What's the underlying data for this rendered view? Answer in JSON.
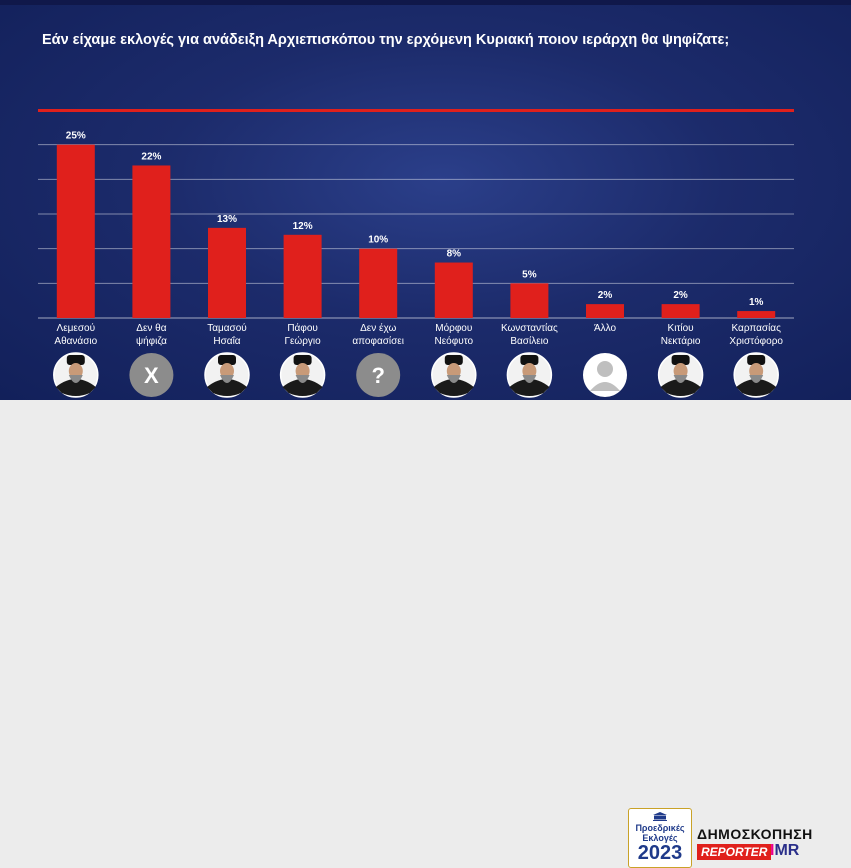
{
  "title": "Εάν είχαμε εκλογές για ανάδειξη Αρχιεπισκόπου την ερχόμενη Κυριακή ποιον ιεράρχη θα ψηφίζατε;",
  "colors": {
    "bar": "#e0201c",
    "background": "#1c2b6b",
    "accent": "#e0201c"
  },
  "chart_data": {
    "type": "bar",
    "title": "Εάν είχαμε εκλογές για ανάδειξη Αρχιεπισκόπου την ερχόμενη Κυριακή ποιον ιεράρχη θα ψηφίζατε;",
    "categories": [
      [
        "Λεμεσού",
        "Αθανάσιο"
      ],
      [
        "Δεν θα",
        "ψήφιζα"
      ],
      [
        "Ταμασού",
        "Ησαΐα"
      ],
      [
        "Πάφου",
        "Γεώργιο"
      ],
      [
        "Δεν έχω",
        "αποφασίσει"
      ],
      [
        "Μόρφου",
        "Νεόφυτο"
      ],
      [
        "Κωνσταντίας",
        "Βασίλειο"
      ],
      [
        "Άλλο"
      ],
      [
        "Κιτίου",
        "Νεκτάριο"
      ],
      [
        "Καρπασίας",
        "Χριστόφορο"
      ]
    ],
    "values": [
      25,
      22,
      13,
      12,
      10,
      8,
      5,
      2,
      2,
      1
    ],
    "value_labels": [
      "25%",
      "22%",
      "13%",
      "12%",
      "10%",
      "8%",
      "5%",
      "2%",
      "2%",
      "1%"
    ],
    "ylim": [
      0,
      30
    ],
    "grid": true,
    "icons": [
      "portrait",
      "x-mark-icon",
      "portrait",
      "portrait",
      "question-mark-icon",
      "portrait",
      "portrait",
      "person-silhouette-icon",
      "portrait",
      "portrait"
    ],
    "icon_glyphs": [
      "",
      "X",
      "",
      "",
      "?",
      "",
      "",
      "",
      "",
      ""
    ]
  },
  "footer": {
    "logo_line1": "Προεδρικές",
    "logo_line2": "Εκλογές",
    "logo_year": "2023",
    "brand_main": "ΔΗΜΟΣΚΟΠΗΣΗ",
    "brand_reporter": "REPORTER",
    "brand_imr_i": "I",
    "brand_imr_rest": "MR"
  }
}
